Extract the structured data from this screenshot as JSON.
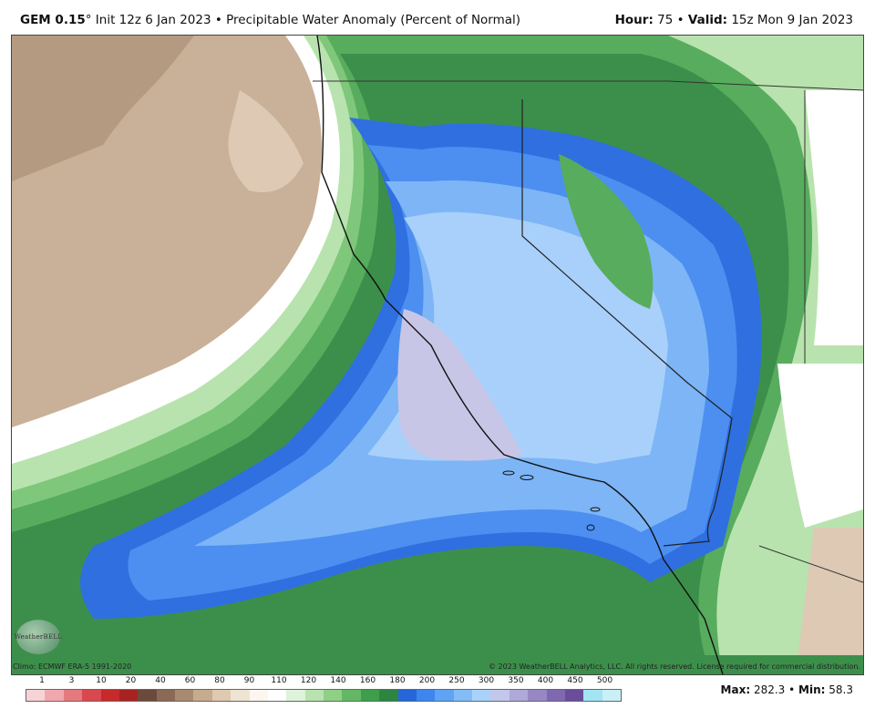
{
  "header": {
    "model": "GEM 0.15",
    "degree": "°",
    "init": "Init 12z 6 Jan 2023",
    "separator": "•",
    "product": "Precipitable Water Anomaly (Percent of Normal)",
    "hour_label": "Hour:",
    "hour_value": "75",
    "valid_label": "Valid:",
    "valid_value": "15z Mon 9 Jan 2023"
  },
  "footer": {
    "climo": "Climo: ECMWF ERA-5 1991-2020",
    "copyright": "© 2023 WeatherBELL Analytics, LLC. All rights reserved. License required for commercial distribution.",
    "logo": "WeatherBELL",
    "max_label": "Max:",
    "max_value": "282.3",
    "min_label": "Min:",
    "min_value": "58.3"
  },
  "legend": {
    "ticks": [
      "1",
      "3",
      "10",
      "20",
      "40",
      "60",
      "80",
      "90",
      "110",
      "120",
      "140",
      "160",
      "180",
      "200",
      "250",
      "300",
      "350",
      "400",
      "450",
      "500"
    ],
    "colors": [
      "#f7d3d6",
      "#f0a8ae",
      "#e6787f",
      "#d9484f",
      "#c72a2a",
      "#a82222",
      "#6b4a3c",
      "#8a6a55",
      "#a88a70",
      "#c7ab8f",
      "#dfc9b0",
      "#efe4d2",
      "#fbf7ef",
      "#ffffff",
      "#dff2da",
      "#b8e3ae",
      "#8fcf86",
      "#63b765",
      "#3f9e4c",
      "#2e8541",
      "#2566d8",
      "#3d86ee",
      "#5ea3f4",
      "#83bdf8",
      "#a9d2fa",
      "#c3c7ea",
      "#aea9d9",
      "#9688c4",
      "#8068b0",
      "#6a4d9a",
      "#a3e4f2",
      "#c9eff7"
    ]
  },
  "colors": {
    "brown_dark": "#b59a82",
    "brown": "#c9b098",
    "tan": "#ddc9b4",
    "white": "#ffffff",
    "green_light": "#b8e3ae",
    "green_mid": "#7fc77a",
    "green": "#58ac5d",
    "green_dark": "#3c8f4b",
    "blue_dark": "#2f6fe0",
    "blue": "#4c8ff0",
    "blue_light": "#7db5f6",
    "blue_pale": "#a8d0fa",
    "lavender": "#c8c6e6"
  }
}
